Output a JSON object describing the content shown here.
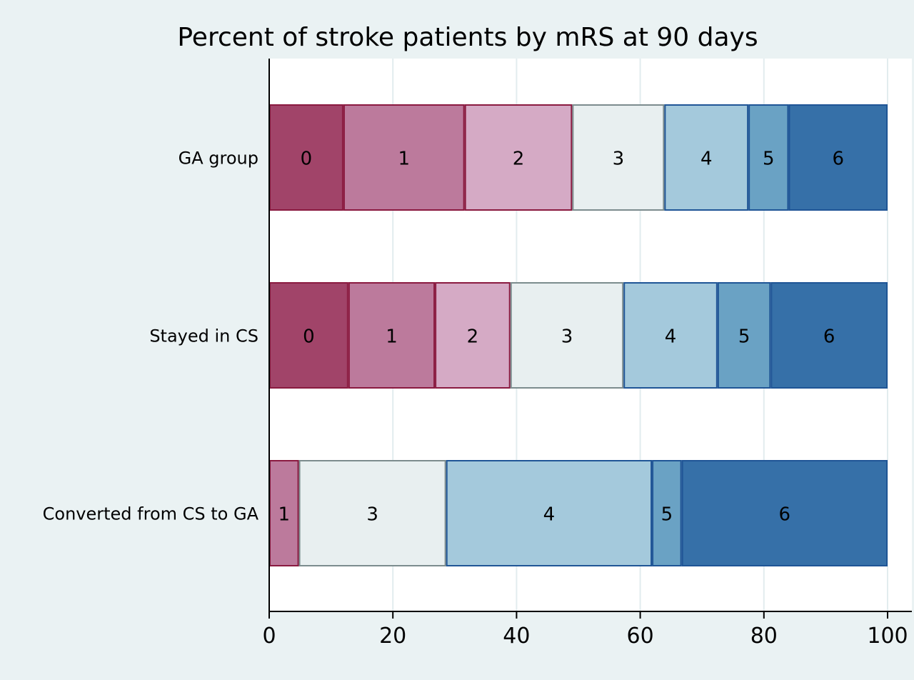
{
  "chart_data": {
    "type": "bar",
    "orientation": "horizontal",
    "stacked": true,
    "title": "Percent of stroke patients by mRS at 90 days",
    "xlabel": "",
    "ylabel": "",
    "xlim": [
      0,
      100
    ],
    "x_ticks": [
      "0",
      "20",
      "40",
      "60",
      "80",
      "100"
    ],
    "x_tick_values": [
      0,
      20,
      40,
      60,
      80,
      100
    ],
    "grid": "vertical",
    "categories": [
      "GA group",
      "Stayed in CS",
      "Converted from CS to GA"
    ],
    "score_colors": {
      "0": {
        "fill": "#a14469",
        "stroke": "#8a1a40"
      },
      "1": {
        "fill": "#bc7a9c",
        "stroke": "#8a1a40"
      },
      "2": {
        "fill": "#d5aac5",
        "stroke": "#8a1a40"
      },
      "3": {
        "fill": "#e8eff0",
        "stroke": "#7c8c8e"
      },
      "4": {
        "fill": "#a4c9dc",
        "stroke": "#1f5596"
      },
      "5": {
        "fill": "#6aa2c4",
        "stroke": "#1f5596"
      },
      "6": {
        "fill": "#3670a8",
        "stroke": "#1f5596"
      }
    },
    "rows": [
      {
        "category": "GA group",
        "segments": [
          {
            "label": "0",
            "value": 12.0
          },
          {
            "label": "1",
            "value": 19.6
          },
          {
            "label": "2",
            "value": 17.4
          },
          {
            "label": "3",
            "value": 14.9
          },
          {
            "label": "4",
            "value": 13.6
          },
          {
            "label": "5",
            "value": 6.5
          },
          {
            "label": "6",
            "value": 16.0
          }
        ]
      },
      {
        "category": "Stayed in CS",
        "segments": [
          {
            "label": "0",
            "value": 12.8
          },
          {
            "label": "1",
            "value": 14.0
          },
          {
            "label": "2",
            "value": 12.2
          },
          {
            "label": "3",
            "value": 18.3
          },
          {
            "label": "4",
            "value": 15.2
          },
          {
            "label": "5",
            "value": 8.6
          },
          {
            "label": "6",
            "value": 18.9
          }
        ]
      },
      {
        "category": "Converted from CS to GA",
        "segments": [
          {
            "label": "1",
            "value": 4.8
          },
          {
            "label": "3",
            "value": 23.8
          },
          {
            "label": "4",
            "value": 33.3
          },
          {
            "label": "5",
            "value": 4.8
          },
          {
            "label": "6",
            "value": 33.3
          }
        ]
      }
    ]
  }
}
